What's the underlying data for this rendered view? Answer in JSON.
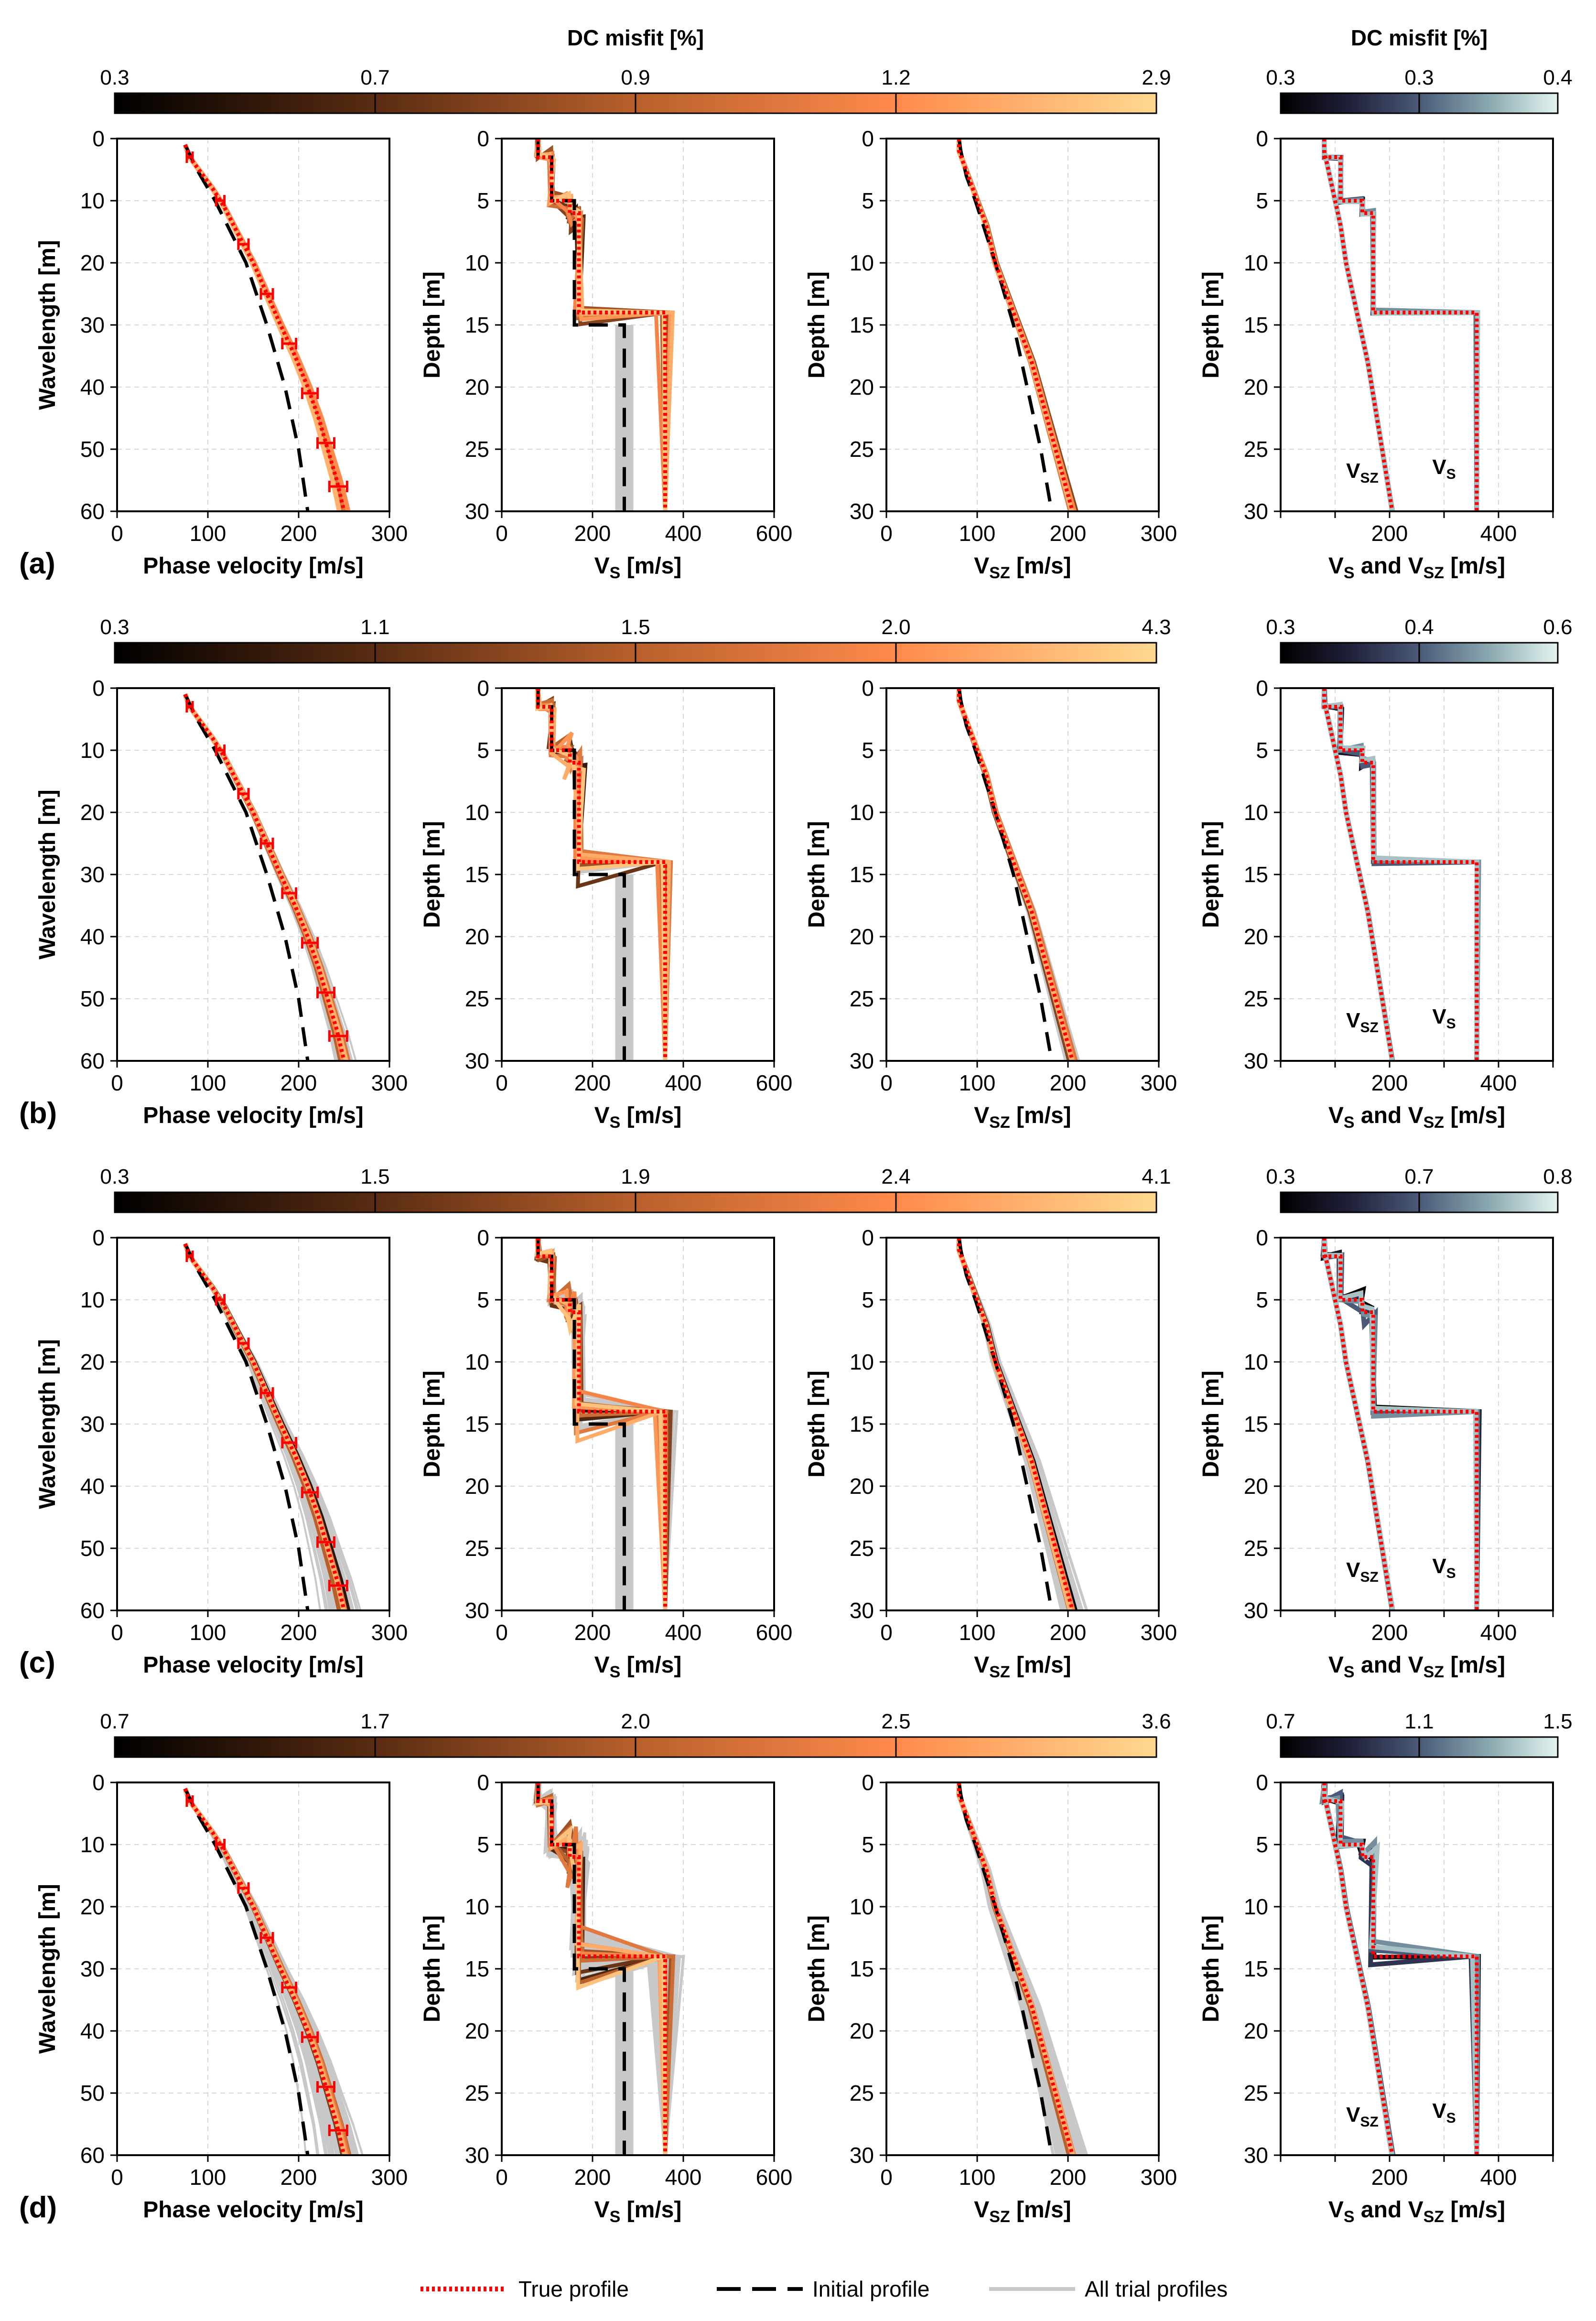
{
  "figure": {
    "colorbar_title_main": "DC misfit [%]",
    "colorbar_title_side": "DC misfit [%]",
    "colors": {
      "true": "#ff0000",
      "initial": "#000000",
      "trial": "#c8c8c8",
      "grid": "#d8d8d8",
      "main_cmap": [
        "#000000",
        "#5a2c12",
        "#b8602c",
        "#ff8a4c",
        "#ffd890"
      ],
      "side_cmap": [
        "#000000",
        "#20203a",
        "#4a5a78",
        "#8aa8b0",
        "#e4f4f0"
      ]
    },
    "legend": {
      "true_label": "True profile",
      "initial_label": "Initial profile",
      "trial_label": "All trial profiles"
    },
    "axis_labels": {
      "p1x": "Phase velocity [m/s]",
      "p1y": "Wavelength [m]",
      "p2y": "Depth [m]",
      "p3y": "Depth [m]",
      "p4y": "Depth [m]"
    },
    "ticks": {
      "p1x": [
        "0",
        "100",
        "200",
        "300"
      ],
      "p1y": [
        "0",
        "10",
        "20",
        "30",
        "40",
        "50",
        "60"
      ],
      "p2x": [
        "0",
        "200",
        "400",
        "600"
      ],
      "p3x": [
        "0",
        "100",
        "200",
        "300"
      ],
      "p4x": [
        "200",
        "400"
      ],
      "depth": [
        "0",
        "5",
        "10",
        "15",
        "20",
        "25",
        "30"
      ]
    },
    "curve_labels": {
      "vsz": "VSZ",
      "vs": "VS"
    }
  },
  "chart_data": {
    "type": "line",
    "description_rows": [
      "a",
      "b",
      "c",
      "d"
    ],
    "true_dispersion": {
      "wavelength_m": [
        1,
        3,
        5,
        8,
        11,
        15,
        20,
        25,
        30,
        35,
        40,
        45,
        50,
        55,
        60
      ],
      "velocity_mps": [
        75,
        80,
        90,
        105,
        118,
        132,
        150,
        165,
        180,
        196,
        210,
        222,
        232,
        242,
        250
      ]
    },
    "initial_dispersion": {
      "wavelength_m": [
        1,
        5,
        10,
        20,
        30,
        40,
        50,
        60
      ],
      "velocity_mps": [
        75,
        88,
        108,
        142,
        165,
        185,
        200,
        210
      ]
    },
    "true_vs": {
      "depth_m": [
        0,
        1.5,
        1.5,
        5,
        5,
        6,
        6,
        14,
        14,
        30
      ],
      "vs_mps": [
        80,
        80,
        110,
        110,
        150,
        150,
        170,
        170,
        360,
        360
      ]
    },
    "initial_vs": {
      "depth_m": [
        0,
        1.5,
        1.5,
        5,
        5,
        15,
        15,
        30
      ],
      "vs_mps": [
        80,
        80,
        110,
        110,
        160,
        160,
        270,
        270
      ]
    },
    "true_vsz": {
      "depth_m": [
        0,
        1,
        2,
        3,
        5,
        7,
        10,
        14,
        18,
        22,
        26,
        30
      ],
      "vsz_mps": [
        80,
        80,
        85,
        90,
        100,
        110,
        120,
        140,
        160,
        175,
        190,
        205
      ]
    },
    "initial_vsz": {
      "depth_m": [
        0,
        1,
        3,
        5,
        10,
        15,
        20,
        25,
        30
      ],
      "vsz_mps": [
        80,
        82,
        88,
        98,
        120,
        140,
        155,
        170,
        182
      ]
    },
    "rows": [
      {
        "label": "(a)",
        "main_ticks": [
          "0.3",
          "0.7",
          "0.9",
          "1.2",
          "2.9"
        ],
        "side_ticks": [
          "0.3",
          "0.3",
          "0.4"
        ],
        "spread": 0.05,
        "trials": 40,
        "side_spread": 0.15
      },
      {
        "label": "(b)",
        "main_ticks": [
          "0.3",
          "1.1",
          "1.5",
          "2.0",
          "4.3"
        ],
        "side_ticks": [
          "0.3",
          "0.4",
          "0.6"
        ],
        "spread": 0.1,
        "trials": 50,
        "side_spread": 0.3
      },
      {
        "label": "(c)",
        "main_ticks": [
          "0.3",
          "1.5",
          "1.9",
          "2.4",
          "4.1"
        ],
        "side_ticks": [
          "0.3",
          "0.7",
          "0.8"
        ],
        "spread": 0.18,
        "trials": 60,
        "side_spread": 0.6
      },
      {
        "label": "(d)",
        "main_ticks": [
          "0.7",
          "1.7",
          "2.0",
          "2.5",
          "3.6"
        ],
        "side_ticks": [
          "0.7",
          "1.1",
          "1.5"
        ],
        "spread": 0.28,
        "trials": 70,
        "side_spread": 1.0
      }
    ],
    "axes": {
      "panel1": {
        "xlim": [
          0,
          300
        ],
        "ylim": [
          60,
          0
        ]
      },
      "panel2": {
        "xlim": [
          0,
          600
        ],
        "ylim": [
          30,
          0
        ]
      },
      "panel3": {
        "xlim": [
          0,
          300
        ],
        "ylim": [
          30,
          0
        ]
      },
      "panel4": {
        "xlim": [
          0,
          500
        ],
        "ylim": [
          30,
          0
        ]
      }
    }
  }
}
